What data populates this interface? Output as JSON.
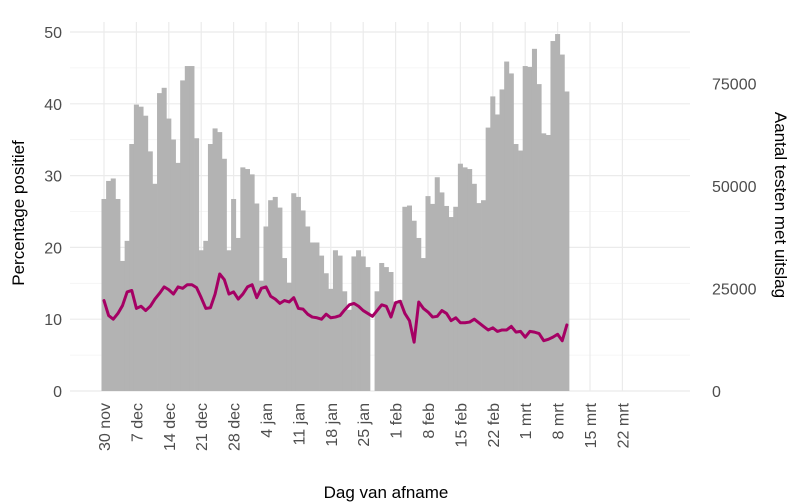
{
  "chart_data": {
    "type": "bar+line",
    "xlabel": "Dag van afname",
    "ylabel_left": "Percentage positief",
    "ylabel_right": "Aantal testen met uitslag",
    "x_start": "2020-11-30",
    "x_end": "2021-03-25",
    "x_ticks": [
      {
        "date": "2020-11-30",
        "label": "30 nov"
      },
      {
        "date": "2020-12-07",
        "label": "7 dec"
      },
      {
        "date": "2020-12-14",
        "label": "14 dec"
      },
      {
        "date": "2020-12-21",
        "label": "21 dec"
      },
      {
        "date": "2020-12-28",
        "label": "28 dec"
      },
      {
        "date": "2021-01-04",
        "label": "4 jan"
      },
      {
        "date": "2021-01-11",
        "label": "11 jan"
      },
      {
        "date": "2021-01-18",
        "label": "18 jan"
      },
      {
        "date": "2021-01-25",
        "label": "25 jan"
      },
      {
        "date": "2021-02-01",
        "label": "1 feb"
      },
      {
        "date": "2021-02-08",
        "label": "8 feb"
      },
      {
        "date": "2021-02-15",
        "label": "15 feb"
      },
      {
        "date": "2021-02-22",
        "label": "22 feb"
      },
      {
        "date": "2021-03-01",
        "label": "1 mrt"
      },
      {
        "date": "2021-03-08",
        "label": "8 mrt"
      },
      {
        "date": "2021-03-15",
        "label": "15 mrt"
      },
      {
        "date": "2021-03-22",
        "label": "22 mrt"
      }
    ],
    "left_axis": {
      "ylim": [
        0,
        50
      ],
      "ticks": [
        0,
        10,
        20,
        30,
        40,
        50
      ]
    },
    "right_axis": {
      "ylim": [
        0,
        87500
      ],
      "ticks": [
        0,
        25000,
        50000,
        75000
      ]
    },
    "grid": true,
    "series": [
      {
        "kind": "bar",
        "axis": "right",
        "color": "#b3b3b3",
        "values": [
          46800,
          51200,
          51800,
          46800,
          31700,
          36600,
          60200,
          69800,
          69300,
          67100,
          58400,
          50500,
          72600,
          73900,
          66400,
          61300,
          55600,
          75700,
          79200,
          79200,
          61600,
          34300,
          36600,
          60200,
          64000,
          63100,
          56600,
          34300,
          46800,
          37300,
          54500,
          54100,
          52800,
          45700,
          26900,
          40100,
          46500,
          47300,
          44700,
          32400,
          26400,
          48200,
          47300,
          44000,
          40100,
          36200,
          36200,
          33000,
          28700,
          24900,
          34300,
          33000,
          24300,
          19800,
          32800,
          34300,
          32800,
          30200,
          0,
          24300,
          31200,
          30200,
          29000,
          21800,
          22200,
          44900,
          45200,
          41500,
          37300,
          32400,
          47500,
          45600,
          52100,
          48400,
          45100,
          42400,
          44900,
          55400,
          54500,
          54100,
          50500,
          45800,
          46500,
          64200,
          71800,
          67400,
          73500,
          80300,
          77400,
          60200,
          58600,
          79200,
          79000,
          83400,
          74800,
          62800,
          62400,
          85300,
          87000,
          82000,
          73000
        ]
      },
      {
        "kind": "line",
        "axis": "left",
        "color": "#a50064",
        "values": [
          12.6,
          10.5,
          10.0,
          10.8,
          11.9,
          13.8,
          14.0,
          11.5,
          11.8,
          11.2,
          11.8,
          12.8,
          13.6,
          14.5,
          14.1,
          13.5,
          14.5,
          14.3,
          14.8,
          14.8,
          14.4,
          13.0,
          11.5,
          11.6,
          13.5,
          16.3,
          15.5,
          13.5,
          13.8,
          12.8,
          13.5,
          14.5,
          14.8,
          13.0,
          14.3,
          14.5,
          13.2,
          12.8,
          12.2,
          12.6,
          12.4,
          13.0,
          11.5,
          11.4,
          10.7,
          10.3,
          10.2,
          10.0,
          10.7,
          10.2,
          10.3,
          10.5,
          11.3,
          12.0,
          12.2,
          11.8,
          11.2,
          10.8,
          10.4,
          11.2,
          12.0,
          11.8,
          10.3,
          12.3,
          12.5,
          10.8,
          9.8,
          6.8,
          12.4,
          11.5,
          11.0,
          10.3,
          10.4,
          11.2,
          10.8,
          9.8,
          10.2,
          9.5,
          9.5,
          9.6,
          10.0,
          9.5,
          9.0,
          8.5,
          8.8,
          8.3,
          8.5,
          8.5,
          9.0,
          8.2,
          8.3,
          7.5,
          8.3,
          8.2,
          8.0,
          7.0,
          7.2,
          7.5,
          7.9,
          7.0,
          9.2
        ]
      }
    ]
  }
}
